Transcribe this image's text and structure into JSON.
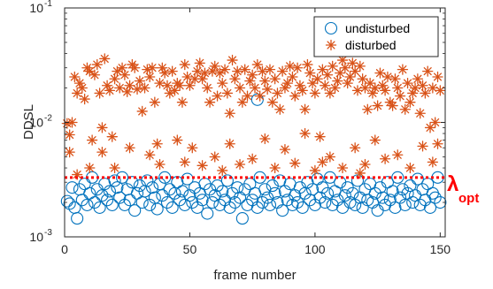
{
  "chart_data": {
    "type": "scatter",
    "title": "",
    "xlabel": "frame number",
    "ylabel": "DDSL",
    "xlim": [
      0,
      152
    ],
    "ylim": [
      0.001,
      0.1
    ],
    "yscale": "log",
    "grid": false,
    "legend_position": "top-right",
    "xticks": [
      {
        "value": 0,
        "label": "0"
      },
      {
        "value": 50,
        "label": "50"
      },
      {
        "value": 100,
        "label": "100"
      },
      {
        "value": 150,
        "label": "150"
      }
    ],
    "yticks": [
      {
        "value": 0.001,
        "base": "10",
        "exp": "-3"
      },
      {
        "value": 0.01,
        "base": "10",
        "exp": "-2"
      },
      {
        "value": 0.1,
        "base": "10",
        "exp": "-1"
      }
    ],
    "threshold": {
      "value": 0.0033,
      "label_main": "λ",
      "label_sub": "opt",
      "color": "#ff0000"
    },
    "series": [
      {
        "name": "undisturbed",
        "marker": "circle",
        "color": "#0072bd",
        "x": [
          1,
          2,
          3,
          4,
          5,
          6,
          7,
          8,
          9,
          10,
          11,
          12,
          13,
          14,
          15,
          16,
          17,
          18,
          19,
          20,
          21,
          22,
          23,
          24,
          25,
          26,
          27,
          28,
          29,
          30,
          31,
          32,
          33,
          34,
          35,
          36,
          37,
          38,
          39,
          40,
          41,
          42,
          43,
          44,
          45,
          46,
          47,
          48,
          49,
          50,
          51,
          52,
          53,
          54,
          55,
          56,
          57,
          58,
          59,
          60,
          61,
          62,
          63,
          64,
          65,
          66,
          67,
          68,
          69,
          70,
          71,
          72,
          73,
          74,
          75,
          76,
          77,
          78,
          79,
          80,
          81,
          82,
          83,
          84,
          85,
          86,
          87,
          88,
          89,
          90,
          91,
          92,
          93,
          94,
          95,
          96,
          97,
          98,
          99,
          100,
          101,
          102,
          103,
          104,
          105,
          106,
          107,
          108,
          109,
          110,
          111,
          112,
          113,
          114,
          115,
          116,
          117,
          118,
          119,
          120,
          121,
          122,
          123,
          124,
          125,
          126,
          127,
          128,
          129,
          130,
          131,
          132,
          133,
          134,
          135,
          136,
          137,
          138,
          139,
          140,
          141,
          142,
          143,
          144,
          145,
          146,
          147,
          148,
          149,
          150
        ],
        "y": [
          0.00205,
          0.00195,
          0.0027,
          0.0018,
          0.00145,
          0.0026,
          0.0021,
          0.0029,
          0.0019,
          0.0024,
          0.0033,
          0.002,
          0.0026,
          0.0018,
          0.0023,
          0.0029,
          0.0021,
          0.0025,
          0.0019,
          0.0031,
          0.0027,
          0.0022,
          0.0033,
          0.0019,
          0.0026,
          0.0021,
          0.003,
          0.0017,
          0.0024,
          0.0028,
          0.002,
          0.0025,
          0.0031,
          0.0019,
          0.0027,
          0.0022,
          0.00175,
          0.0029,
          0.0023,
          0.0033,
          0.002,
          0.0026,
          0.0018,
          0.0024,
          0.003,
          0.0021,
          0.0025,
          0.0019,
          0.0032,
          0.0023,
          0.002,
          0.0027,
          0.0018,
          0.0024,
          0.0021,
          0.0029,
          0.0016,
          0.0026,
          0.002,
          0.0023,
          0.0028,
          0.0019,
          0.0025,
          0.0021,
          0.0031,
          0.0018,
          0.0024,
          0.002,
          0.0027,
          0.0022,
          0.00145,
          0.0026,
          0.0019,
          0.0029,
          0.0021,
          0.0024,
          0.0018,
          0.0033,
          0.002,
          0.0026,
          0.0022,
          0.0019,
          0.0028,
          0.0024,
          0.002,
          0.0031,
          0.0017,
          0.0025,
          0.0021,
          0.0029,
          0.0019,
          0.0023,
          0.002,
          0.0027,
          0.0018,
          0.0024,
          0.003,
          0.0021,
          0.0026,
          0.0019,
          0.0032,
          0.0022,
          0.0027,
          0.002,
          0.0024,
          0.0033,
          0.0019,
          0.0025,
          0.0021,
          0.003,
          0.0018,
          0.0023,
          0.0027,
          0.002,
          0.0024,
          0.0019,
          0.0031,
          0.0022,
          0.0018,
          0.0026,
          0.0021,
          0.0029,
          0.002,
          0.0024,
          0.0017,
          0.0027,
          0.0022,
          0.0019,
          0.003,
          0.0021,
          0.0025,
          0.0018,
          0.0033,
          0.0022,
          0.0026,
          0.0019,
          0.0024,
          0.0028,
          0.002,
          0.0023,
          0.0032,
          0.0019,
          0.0026,
          0.0021,
          0.0029,
          0.0018,
          0.0024,
          0.0022,
          0.0033,
          0.002
        ],
        "extra_points": [
          {
            "x": 77,
            "y": 0.0158
          }
        ]
      },
      {
        "name": "disturbed",
        "marker": "asterisk",
        "color": "#d95319",
        "x": [
          1,
          2,
          3,
          4,
          5,
          6,
          7,
          8,
          9,
          10,
          11,
          12,
          13,
          14,
          15,
          16,
          17,
          18,
          19,
          20,
          21,
          22,
          23,
          24,
          25,
          26,
          27,
          28,
          29,
          30,
          31,
          32,
          33,
          34,
          35,
          36,
          37,
          38,
          39,
          40,
          41,
          42,
          43,
          44,
          45,
          46,
          47,
          48,
          49,
          50,
          51,
          52,
          53,
          54,
          55,
          56,
          57,
          58,
          59,
          60,
          61,
          62,
          63,
          64,
          65,
          66,
          67,
          68,
          69,
          70,
          71,
          72,
          73,
          74,
          75,
          76,
          77,
          78,
          79,
          80,
          81,
          82,
          83,
          84,
          85,
          86,
          87,
          88,
          89,
          90,
          91,
          92,
          93,
          94,
          95,
          96,
          97,
          98,
          99,
          100,
          101,
          102,
          103,
          104,
          105,
          106,
          107,
          108,
          109,
          110,
          111,
          112,
          113,
          114,
          115,
          116,
          117,
          118,
          119,
          120,
          121,
          122,
          123,
          124,
          125,
          126,
          127,
          128,
          129,
          130,
          131,
          132,
          133,
          134,
          135,
          136,
          137,
          138,
          139,
          140,
          141,
          142,
          143,
          144,
          145,
          146,
          147,
          148,
          149,
          150
        ],
        "y": [
          0.0098,
          0.0055,
          0.01,
          0.025,
          0.018,
          0.022,
          0.02,
          0.016,
          0.03,
          0.028,
          0.007,
          0.026,
          0.032,
          0.018,
          0.009,
          0.036,
          0.021,
          0.019,
          0.0075,
          0.024,
          0.028,
          0.02,
          0.03,
          0.026,
          0.0185,
          0.021,
          0.032,
          0.03,
          0.0195,
          0.023,
          0.0125,
          0.02,
          0.029,
          0.025,
          0.03,
          0.015,
          0.0065,
          0.022,
          0.03,
          0.027,
          0.021,
          0.018,
          0.028,
          0.019,
          0.022,
          0.021,
          0.015,
          0.032,
          0.025,
          0.021,
          0.006,
          0.024,
          0.028,
          0.033,
          0.024,
          0.027,
          0.02,
          0.015,
          0.028,
          0.031,
          0.017,
          0.027,
          0.022,
          0.029,
          0.018,
          0.012,
          0.035,
          0.024,
          0.028,
          0.02,
          0.015,
          0.029,
          0.017,
          0.023,
          0.026,
          0.02,
          0.032,
          0.017,
          0.028,
          0.023,
          0.0195,
          0.029,
          0.015,
          0.024,
          0.018,
          0.013,
          0.028,
          0.02,
          0.022,
          0.031,
          0.025,
          0.017,
          0.03,
          0.021,
          0.019,
          0.013,
          0.032,
          0.027,
          0.022,
          0.018,
          0.024,
          0.0075,
          0.029,
          0.021,
          0.026,
          0.018,
          0.031,
          0.02,
          0.023,
          0.027,
          0.035,
          0.03,
          0.022,
          0.025,
          0.033,
          0.028,
          0.019,
          0.031,
          0.024,
          0.02,
          0.013,
          0.022,
          0.018,
          0.02,
          0.014,
          0.027,
          0.021,
          0.019,
          0.025,
          0.015,
          0.014,
          0.024,
          0.02,
          0.017,
          0.029,
          0.013,
          0.022,
          0.015,
          0.018,
          0.02,
          0.024,
          0.012,
          0.021,
          0.018,
          0.028,
          0.009,
          0.02,
          0.01,
          0.025,
          0.019
        ],
        "extra_points": [
          {
            "x": 2,
            "y": 0.0078
          },
          {
            "x": 10,
            "y": 0.004
          },
          {
            "x": 15,
            "y": 0.0055
          },
          {
            "x": 20,
            "y": 0.004
          },
          {
            "x": 26,
            "y": 0.006
          },
          {
            "x": 34,
            "y": 0.0052
          },
          {
            "x": 38,
            "y": 0.0043
          },
          {
            "x": 45,
            "y": 0.007
          },
          {
            "x": 48,
            "y": 0.0045
          },
          {
            "x": 55,
            "y": 0.0042
          },
          {
            "x": 60,
            "y": 0.005
          },
          {
            "x": 63,
            "y": 0.0038
          },
          {
            "x": 66,
            "y": 0.0065
          },
          {
            "x": 70,
            "y": 0.0043
          },
          {
            "x": 75,
            "y": 0.0048
          },
          {
            "x": 80,
            "y": 0.0072
          },
          {
            "x": 84,
            "y": 0.004
          },
          {
            "x": 88,
            "y": 0.0058
          },
          {
            "x": 92,
            "y": 0.0044
          },
          {
            "x": 96,
            "y": 0.008
          },
          {
            "x": 103,
            "y": 0.0045
          },
          {
            "x": 106,
            "y": 0.005
          },
          {
            "x": 111,
            "y": 0.004
          },
          {
            "x": 116,
            "y": 0.006
          },
          {
            "x": 120,
            "y": 0.0043
          },
          {
            "x": 124,
            "y": 0.007
          },
          {
            "x": 128,
            "y": 0.0048
          },
          {
            "x": 133,
            "y": 0.0052
          },
          {
            "x": 138,
            "y": 0.004
          },
          {
            "x": 143,
            "y": 0.0062
          },
          {
            "x": 147,
            "y": 0.0045
          },
          {
            "x": 149,
            "y": 0.0065
          },
          {
            "x": 5,
            "y": 0.0035
          },
          {
            "x": 100,
            "y": 0.0038
          },
          {
            "x": 118,
            "y": 0.0036
          }
        ]
      }
    ]
  }
}
